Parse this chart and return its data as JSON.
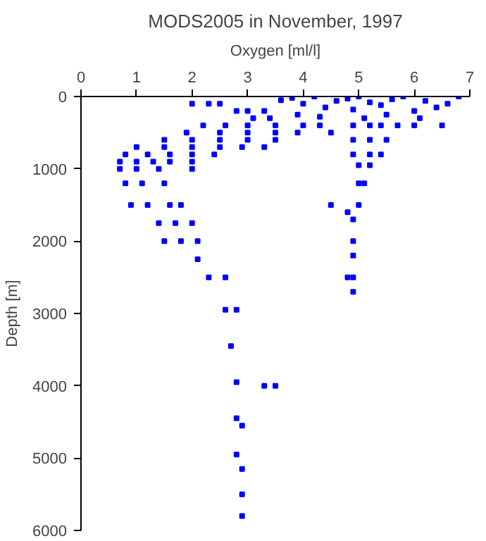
{
  "chart_data": {
    "type": "scatter",
    "title": "MODS2005 in November, 1997",
    "xlabel": "Oxygen [ml/l]",
    "ylabel": "Depth [m]",
    "x": [
      3.6,
      3.8,
      4.0,
      4.2,
      4.4,
      4.6,
      4.8,
      5.0,
      5.2,
      5.4,
      5.6,
      5.8,
      6.0,
      6.2,
      6.4,
      6.6,
      6.8,
      3.9,
      4.3,
      5.5,
      6.1,
      6.5,
      4.9,
      5.1,
      2.0,
      2.3,
      2.5,
      2.8,
      3.0,
      3.3,
      3.1,
      3.4,
      2.2,
      2.6,
      3.0,
      3.5,
      4.0,
      4.3,
      1.9,
      2.5,
      3.0,
      3.5,
      3.9,
      4.5,
      1.5,
      2.0,
      2.5,
      3.0,
      3.5,
      1.0,
      1.5,
      2.0,
      2.5,
      2.9,
      3.3,
      0.8,
      1.2,
      1.6,
      2.0,
      2.4,
      0.7,
      1.0,
      1.3,
      1.6,
      2.0,
      0.7,
      1.0,
      1.4,
      2.0,
      0.8,
      1.1,
      1.5,
      0.9,
      1.2,
      1.6,
      1.8,
      1.4,
      1.7,
      2.0,
      1.5,
      1.8,
      2.1,
      2.1,
      2.3,
      2.6,
      2.6,
      2.8,
      2.7,
      2.8,
      3.3,
      3.5,
      2.8,
      2.9,
      2.8,
      2.9,
      2.9,
      2.9,
      4.9,
      5.2,
      5.4,
      5.7,
      6.0,
      4.9,
      5.2,
      5.5,
      4.9,
      5.2,
      5.4,
      5.0,
      5.2,
      5.0,
      5.1,
      4.5,
      5.0,
      4.8,
      4.9,
      4.9,
      4.9,
      4.8,
      4.9,
      4.9
    ],
    "values": [
      50,
      20,
      100,
      0,
      150,
      60,
      30,
      0,
      80,
      120,
      40,
      0,
      200,
      60,
      150,
      100,
      0,
      250,
      280,
      250,
      300,
      400,
      180,
      300,
      100,
      100,
      100,
      200,
      200,
      200,
      300,
      300,
      400,
      400,
      400,
      400,
      400,
      400,
      500,
      500,
      500,
      500,
      500,
      500,
      600,
      600,
      600,
      600,
      600,
      700,
      700,
      700,
      700,
      700,
      700,
      800,
      800,
      800,
      800,
      800,
      900,
      900,
      900,
      900,
      900,
      1000,
      1000,
      1000,
      1000,
      1200,
      1200,
      1200,
      1500,
      1500,
      1500,
      1500,
      1750,
      1750,
      1750,
      2000,
      2000,
      2000,
      2250,
      2500,
      2500,
      2950,
      2950,
      3450,
      3950,
      4000,
      4000,
      4450,
      4550,
      4950,
      5150,
      5500,
      5800,
      400,
      400,
      400,
      400,
      400,
      600,
      600,
      600,
      800,
      800,
      800,
      950,
      950,
      1200,
      1200,
      1500,
      1500,
      1600,
      1700,
      2000,
      2200,
      2500,
      2500,
      2700
    ],
    "color": "#0000ff",
    "marker": "square",
    "xlim": [
      0,
      7
    ],
    "xticks": [
      0,
      1,
      2,
      3,
      4,
      5,
      6,
      7
    ],
    "ylim": [
      6000,
      0
    ],
    "yticks": [
      0,
      1000,
      2000,
      3000,
      4000,
      5000,
      6000
    ],
    "grid": false
  }
}
